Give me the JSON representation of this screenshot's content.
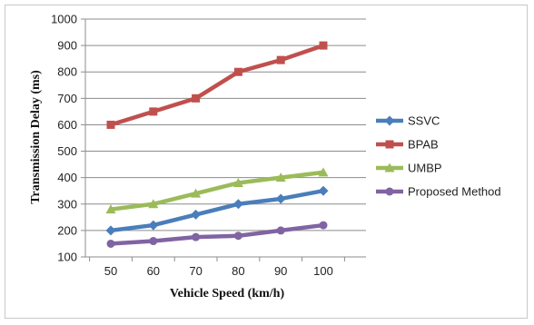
{
  "chart_data": {
    "type": "line",
    "title": "",
    "xlabel": "Vehicle Speed (km/h)",
    "ylabel": "Transmission Delay (ms)",
    "x": [
      50,
      60,
      70,
      80,
      90,
      100
    ],
    "categories": [
      "50",
      "60",
      "70",
      "80",
      "90",
      "100"
    ],
    "ylim": [
      100,
      1000
    ],
    "yticks": [
      100,
      200,
      300,
      400,
      500,
      600,
      700,
      800,
      900,
      1000
    ],
    "grid": "horizontal",
    "legend": "right",
    "series": [
      {
        "name": "SSVC",
        "color": "#4a7ebb",
        "marker": "diamond",
        "values": [
          200,
          220,
          260,
          300,
          320,
          350
        ]
      },
      {
        "name": "BPAB",
        "color": "#c0504d",
        "marker": "square",
        "values": [
          600,
          650,
          700,
          800,
          845,
          900
        ]
      },
      {
        "name": "UMBP",
        "color": "#9bbb59",
        "marker": "triangle",
        "values": [
          280,
          300,
          340,
          380,
          400,
          420
        ]
      },
      {
        "name": "Proposed Method",
        "color": "#8064a2",
        "marker": "circle",
        "values": [
          150,
          160,
          175,
          180,
          200,
          220
        ]
      }
    ]
  }
}
